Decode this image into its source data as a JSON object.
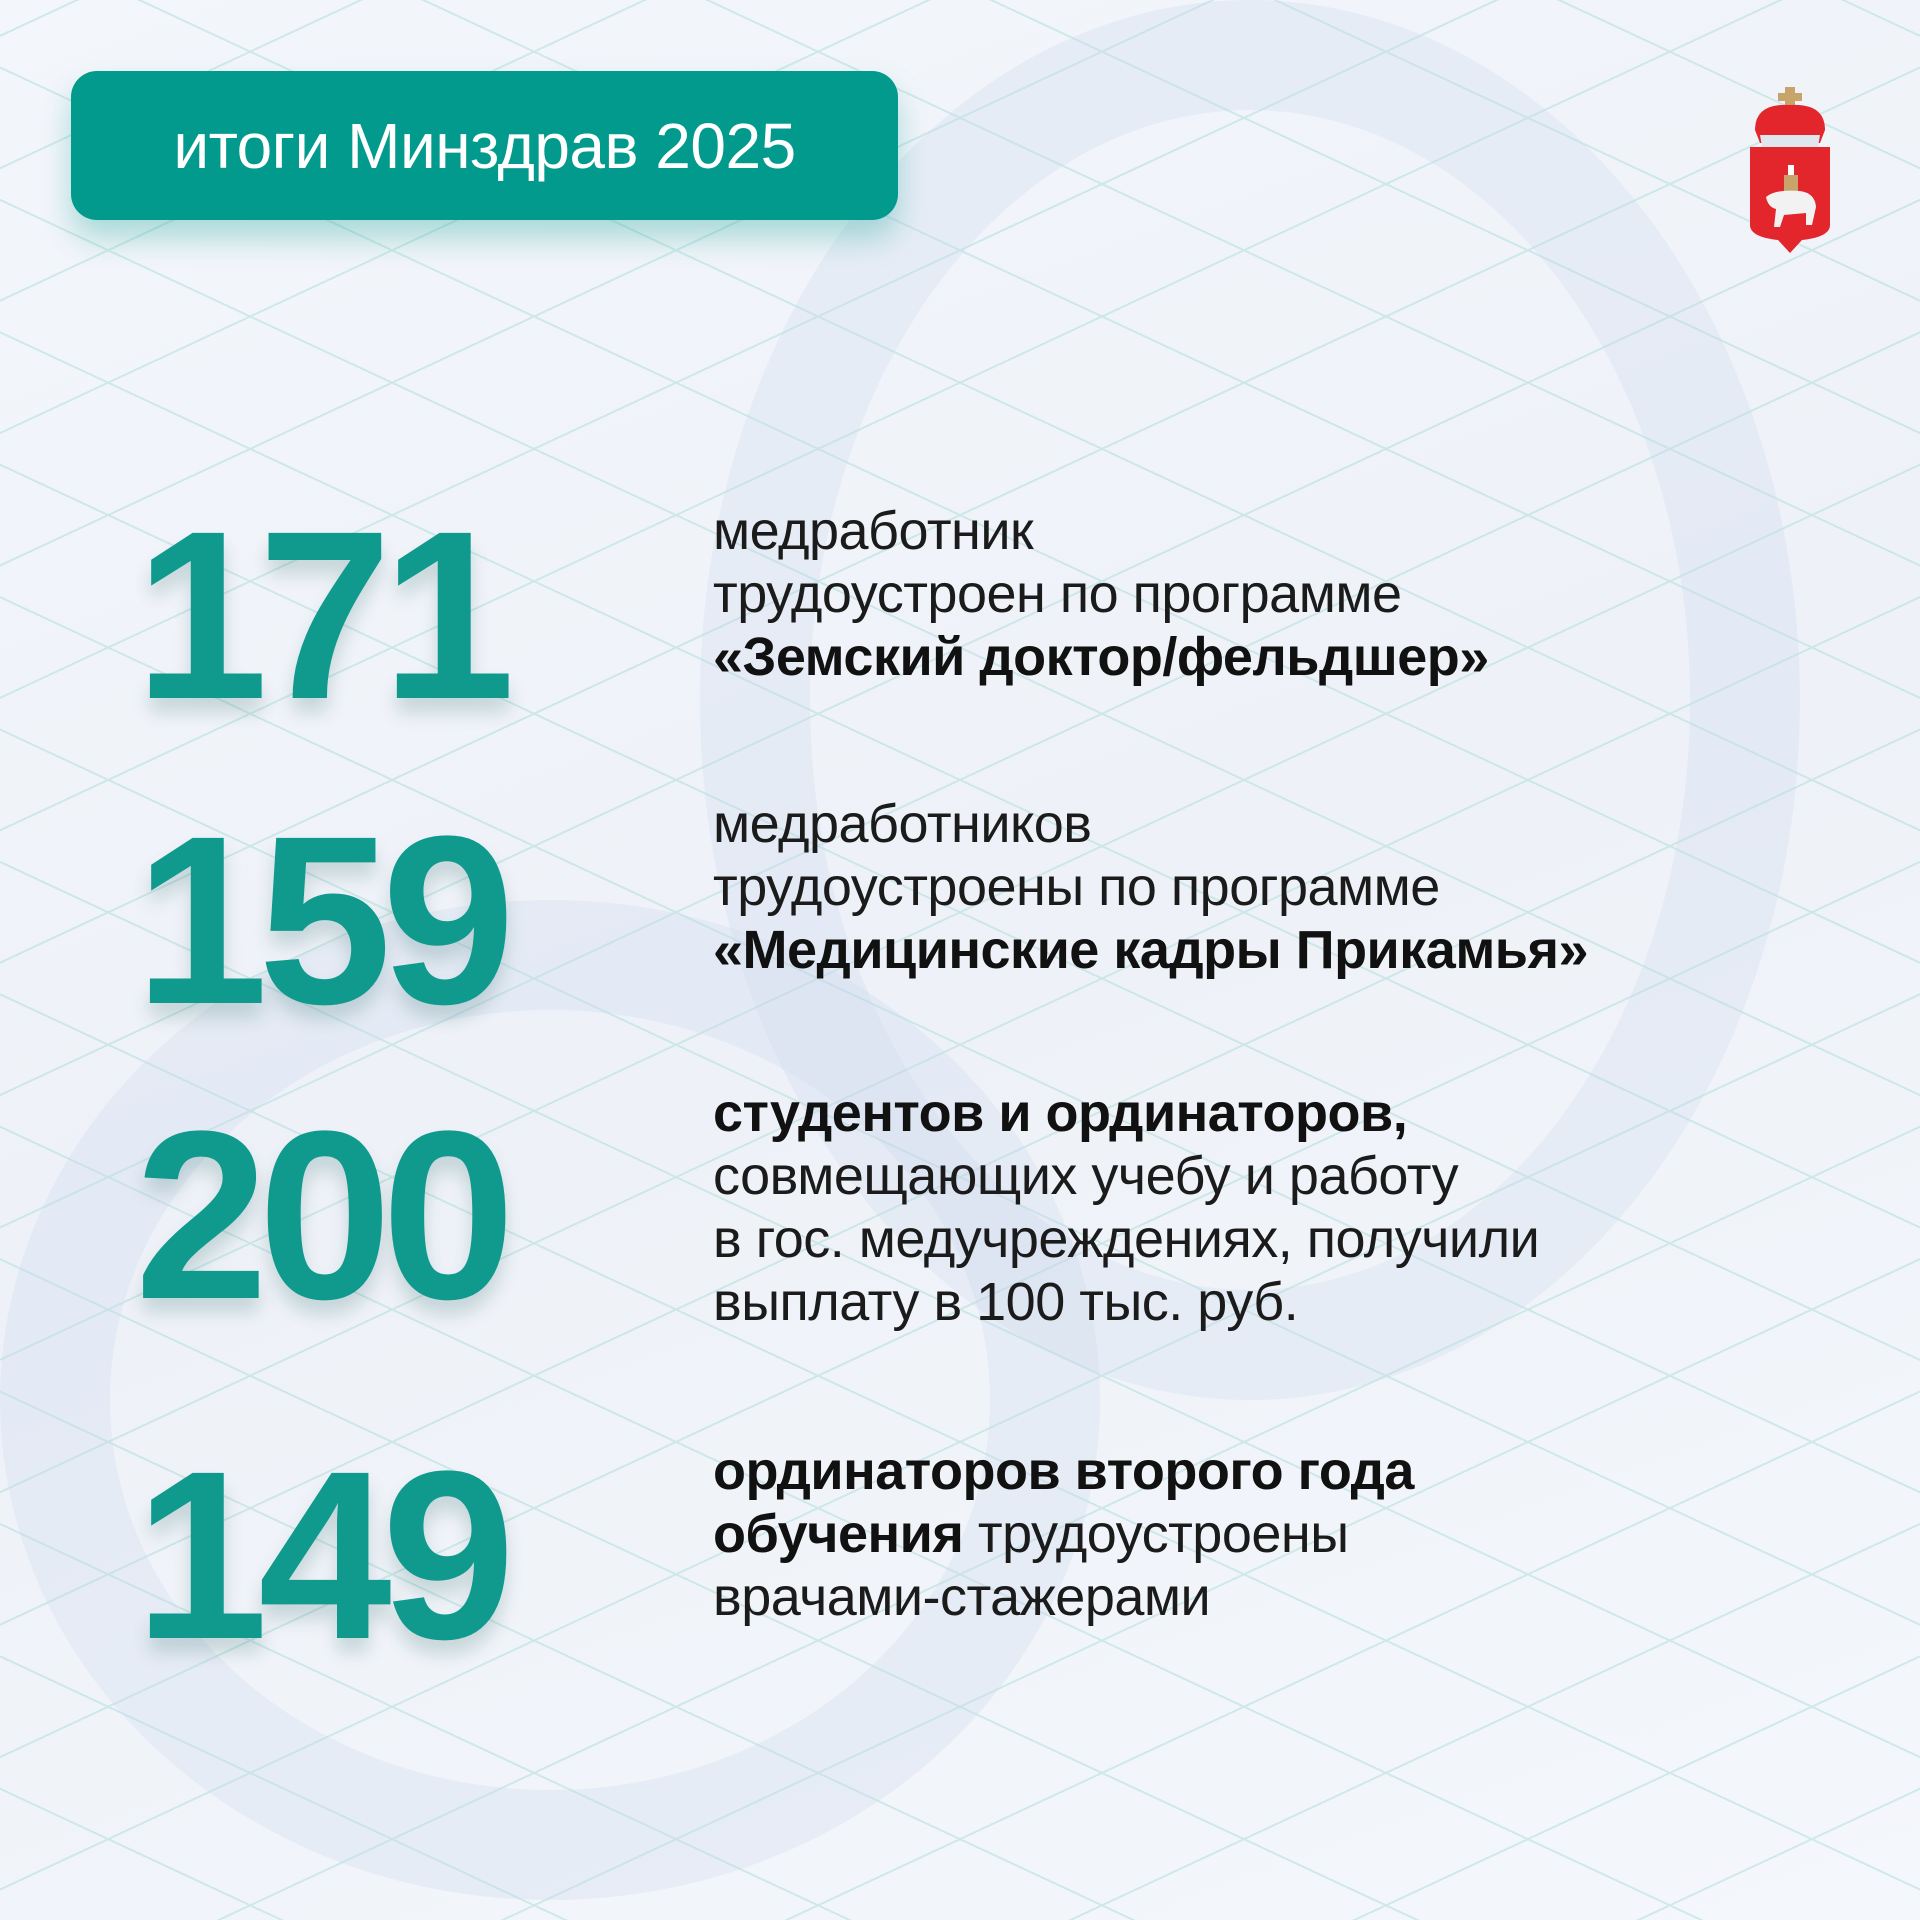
{
  "header": {
    "title": "итоги Минздрав 2025"
  },
  "emblem": {
    "name": "perm-krai-coat-of-arms",
    "colors": {
      "shield": "#e3262b",
      "bear": "#f2f2f2"
    }
  },
  "colors": {
    "accent": "#029a8c",
    "number": "#0f9a8d"
  },
  "stats": [
    {
      "value": "171",
      "lines": [
        "медработник",
        "трудоустроен по программе"
      ],
      "bold": "«Земский доктор/фельдшер»"
    },
    {
      "value": "159",
      "lines": [
        "медработников",
        "трудоустроены по программе"
      ],
      "bold": "«Медицинские кадры Прикамья»"
    },
    {
      "value": "200",
      "bold": "студентов и ординаторов,",
      "lines": [
        "совмещающих учебу и работу",
        "в гос. медучреждениях, получили",
        "выплату в 100 тыс. руб."
      ]
    },
    {
      "value": "149",
      "bold": "ординаторов второго года",
      "bold2": "обучения",
      "rest": " трудоустроены",
      "lines": [
        "врачами-стажерами"
      ]
    }
  ]
}
